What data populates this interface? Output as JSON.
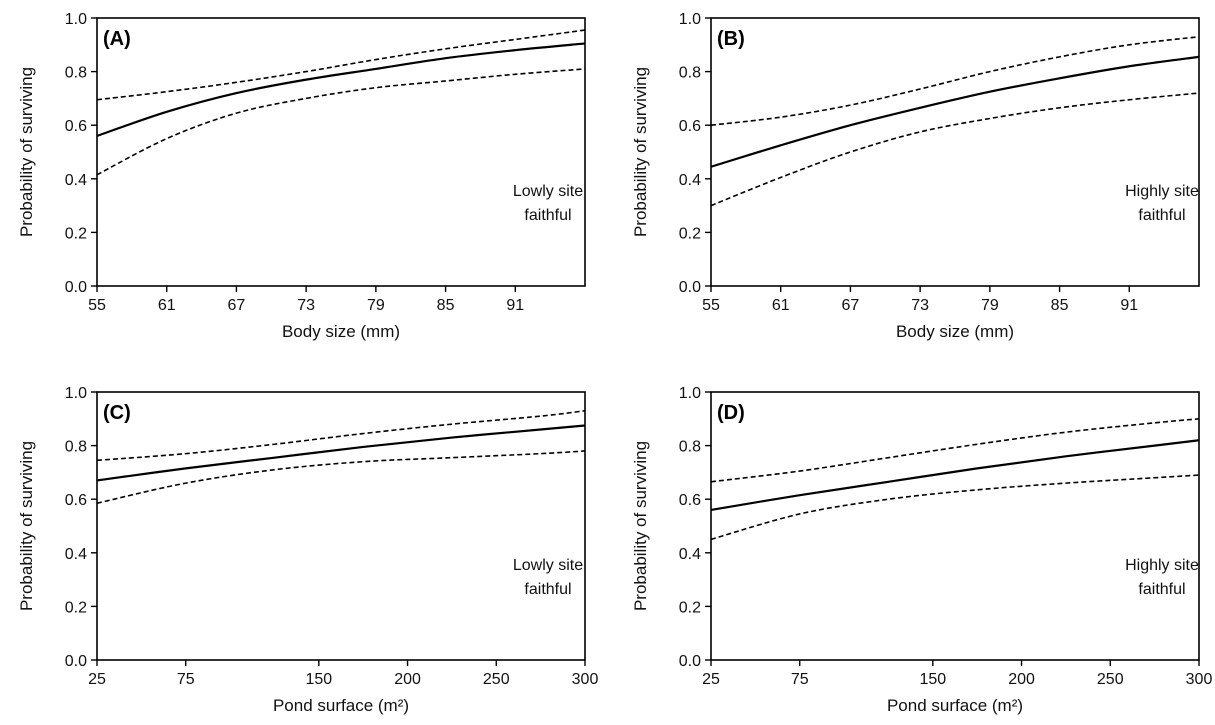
{
  "chart_data": [
    {
      "type": "line",
      "panel_label": "(A)",
      "annotation": [
        "Lowly site",
        "faithful"
      ],
      "xlabel": "Body size (mm)",
      "ylabel": "Probability of surviving",
      "xlim": [
        55,
        97
      ],
      "ylim": [
        0,
        1
      ],
      "xticks": [
        "55",
        "61",
        "67",
        "73",
        "79",
        "85",
        "91"
      ],
      "yticks": [
        "0.0",
        "0.2",
        "0.4",
        "0.6",
        "0.8",
        "1.0"
      ],
      "x": [
        55,
        61,
        67,
        73,
        79,
        85,
        91,
        97
      ],
      "series": [
        {
          "values": [
            0.56,
            0.65,
            0.72,
            0.77,
            0.81,
            0.85,
            0.88,
            0.905
          ],
          "style": "solid"
        },
        {
          "values": [
            0.695,
            0.725,
            0.76,
            0.8,
            0.845,
            0.885,
            0.92,
            0.955
          ],
          "style": "dashed"
        },
        {
          "values": [
            0.415,
            0.55,
            0.645,
            0.7,
            0.74,
            0.765,
            0.79,
            0.81
          ],
          "style": "dashed"
        }
      ]
    },
    {
      "type": "line",
      "panel_label": "(B)",
      "annotation": [
        "Highly site",
        "faithful"
      ],
      "xlabel": "Body size (mm)",
      "ylabel": "Probability of surviving",
      "xlim": [
        55,
        97
      ],
      "ylim": [
        0,
        1
      ],
      "xticks": [
        "55",
        "61",
        "67",
        "73",
        "79",
        "85",
        "91"
      ],
      "yticks": [
        "0.0",
        "0.2",
        "0.4",
        "0.6",
        "0.8",
        "1.0"
      ],
      "x": [
        55,
        61,
        67,
        73,
        79,
        85,
        91,
        97
      ],
      "series": [
        {
          "values": [
            0.445,
            0.525,
            0.6,
            0.665,
            0.725,
            0.775,
            0.82,
            0.855
          ],
          "style": "solid"
        },
        {
          "values": [
            0.6,
            0.63,
            0.675,
            0.735,
            0.8,
            0.855,
            0.9,
            0.93
          ],
          "style": "dashed"
        },
        {
          "values": [
            0.3,
            0.405,
            0.5,
            0.575,
            0.625,
            0.665,
            0.695,
            0.72
          ],
          "style": "dashed"
        }
      ]
    },
    {
      "type": "line",
      "panel_label": "(C)",
      "annotation": [
        "Lowly site",
        "faithful"
      ],
      "xlabel": "Pond surface (m²)",
      "ylabel": "Probability of surviving",
      "xlim": [
        25,
        300
      ],
      "ylim": [
        0,
        1
      ],
      "xticks": [
        "25",
        "75",
        "150",
        "200",
        "250",
        "300"
      ],
      "yticks": [
        "0.0",
        "0.2",
        "0.4",
        "0.6",
        "0.8",
        "1.0"
      ],
      "x": [
        25,
        75,
        125,
        175,
        225,
        275,
        300
      ],
      "series": [
        {
          "values": [
            0.67,
            0.715,
            0.755,
            0.795,
            0.83,
            0.86,
            0.875
          ],
          "style": "solid"
        },
        {
          "values": [
            0.745,
            0.77,
            0.805,
            0.845,
            0.88,
            0.91,
            0.93
          ],
          "style": "dashed"
        },
        {
          "values": [
            0.585,
            0.66,
            0.71,
            0.74,
            0.755,
            0.77,
            0.78
          ],
          "style": "dashed"
        }
      ]
    },
    {
      "type": "line",
      "panel_label": "(D)",
      "annotation": [
        "Highly site",
        "faithful"
      ],
      "xlabel": "Pond surface (m²)",
      "ylabel": "Probability of surviving",
      "xlim": [
        25,
        300
      ],
      "ylim": [
        0,
        1
      ],
      "xticks": [
        "25",
        "75",
        "150",
        "200",
        "250",
        "300"
      ],
      "yticks": [
        "0.0",
        "0.2",
        "0.4",
        "0.6",
        "0.8",
        "1.0"
      ],
      "x": [
        25,
        75,
        125,
        175,
        225,
        275,
        300
      ],
      "series": [
        {
          "values": [
            0.56,
            0.615,
            0.665,
            0.715,
            0.76,
            0.8,
            0.82
          ],
          "style": "solid"
        },
        {
          "values": [
            0.665,
            0.705,
            0.755,
            0.805,
            0.85,
            0.885,
            0.9
          ],
          "style": "dashed"
        },
        {
          "values": [
            0.45,
            0.545,
            0.6,
            0.635,
            0.66,
            0.68,
            0.69
          ]
        }
      ]
    }
  ]
}
